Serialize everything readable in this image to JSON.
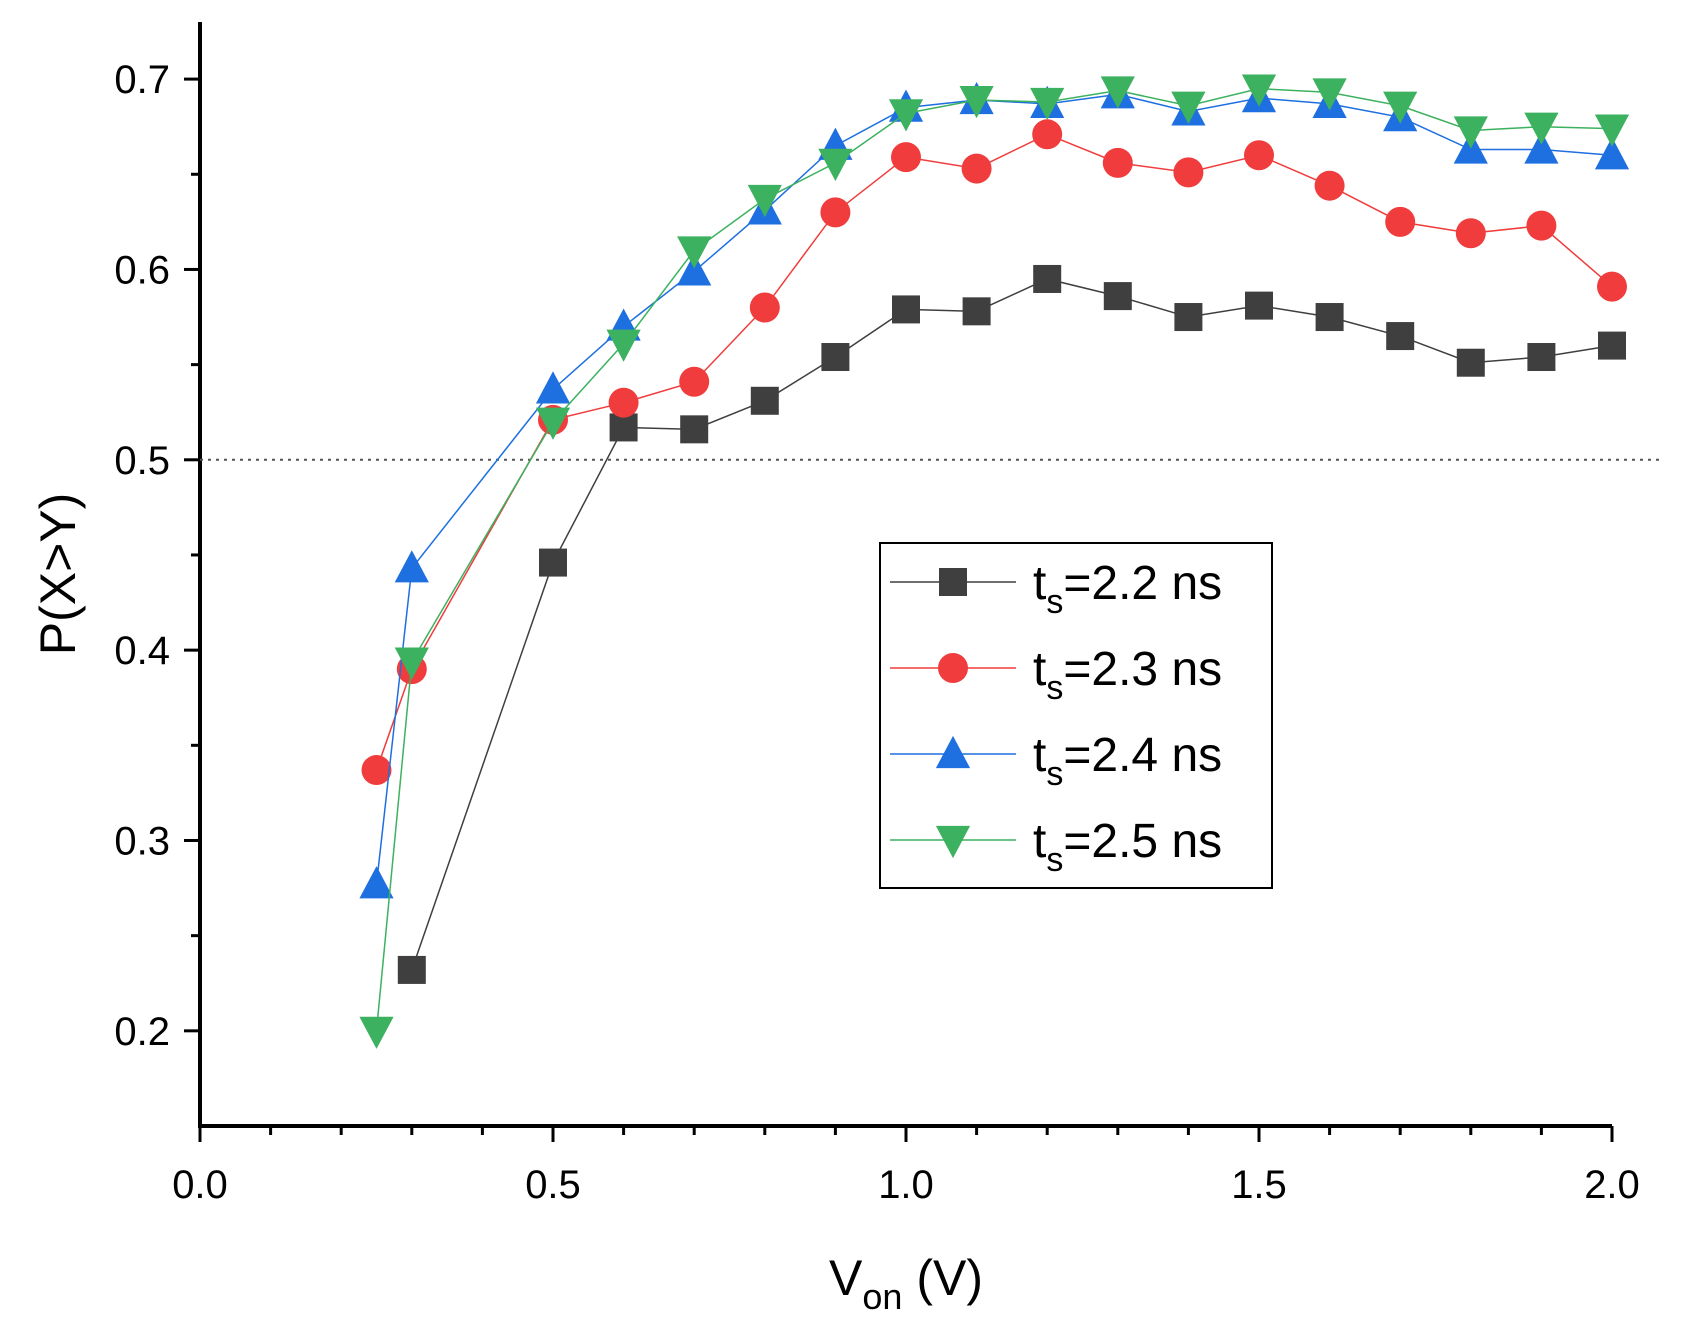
{
  "chart_data": {
    "type": "line",
    "title": "",
    "xlabel": {
      "main": "V",
      "sub": "on",
      "suffix": " (V)"
    },
    "ylabel": "P(X>Y)",
    "xlim": [
      0.0,
      2.0
    ],
    "ylim": [
      0.15,
      0.73
    ],
    "xticks": [
      "0.0",
      "0.5",
      "1.0",
      "1.5",
      "2.0"
    ],
    "yticks": [
      "0.2",
      "0.3",
      "0.4",
      "0.5",
      "0.6",
      "0.7"
    ],
    "reference_line": {
      "y": 0.5,
      "style": "dotted"
    },
    "legend_position": "center-right",
    "grid": false,
    "series": [
      {
        "name": "t_s=2.2 ns",
        "label_main": "t",
        "label_sub": "s",
        "label_rest": "=2.2 ns",
        "color": "#3f3f3f",
        "marker": "square",
        "x": [
          0.3,
          0.5,
          0.6,
          0.7,
          0.8,
          0.9,
          1.0,
          1.1,
          1.2,
          1.3,
          1.4,
          1.5,
          1.6,
          1.7,
          1.8,
          1.9,
          2.0
        ],
        "y": [
          0.232,
          0.446,
          0.517,
          0.516,
          0.531,
          0.554,
          0.579,
          0.578,
          0.595,
          0.586,
          0.575,
          0.581,
          0.575,
          0.565,
          0.551,
          0.554,
          0.56
        ]
      },
      {
        "name": "t_s=2.3 ns",
        "label_main": "t",
        "label_sub": "s",
        "label_rest": "=2.3 ns",
        "color": "#f03c3c",
        "marker": "circle",
        "x": [
          0.25,
          0.3,
          0.5,
          0.6,
          0.7,
          0.8,
          0.9,
          1.0,
          1.1,
          1.2,
          1.3,
          1.4,
          1.5,
          1.6,
          1.7,
          1.8,
          1.9,
          2.0
        ],
        "y": [
          0.337,
          0.39,
          0.521,
          0.53,
          0.541,
          0.58,
          0.63,
          0.659,
          0.653,
          0.671,
          0.656,
          0.651,
          0.66,
          0.644,
          0.625,
          0.619,
          0.623,
          0.591
        ]
      },
      {
        "name": "t_s=2.4 ns",
        "label_main": "t",
        "label_sub": "s",
        "label_rest": "=2.4 ns",
        "color": "#1e6fe0",
        "marker": "triangle-up",
        "x": [
          0.25,
          0.3,
          0.5,
          0.6,
          0.7,
          0.8,
          0.9,
          1.0,
          1.1,
          1.2,
          1.3,
          1.4,
          1.5,
          1.6,
          1.7,
          1.8,
          1.9,
          2.0
        ],
        "y": [
          0.277,
          0.443,
          0.537,
          0.57,
          0.599,
          0.631,
          0.665,
          0.685,
          0.689,
          0.687,
          0.692,
          0.683,
          0.69,
          0.687,
          0.68,
          0.663,
          0.663,
          0.66
        ]
      },
      {
        "name": "t_s=2.5 ns",
        "label_main": "t",
        "label_sub": "s",
        "label_rest": "=2.5 ns",
        "color": "#3cb15f",
        "marker": "triangle-down",
        "x": [
          0.25,
          0.3,
          0.5,
          0.6,
          0.7,
          0.8,
          0.9,
          1.0,
          1.1,
          1.2,
          1.3,
          1.4,
          1.5,
          1.6,
          1.7,
          1.8,
          1.9,
          2.0
        ],
        "y": [
          0.2,
          0.394,
          0.52,
          0.561,
          0.61,
          0.637,
          0.656,
          0.682,
          0.689,
          0.688,
          0.694,
          0.686,
          0.695,
          0.693,
          0.686,
          0.673,
          0.675,
          0.674
        ]
      }
    ]
  }
}
